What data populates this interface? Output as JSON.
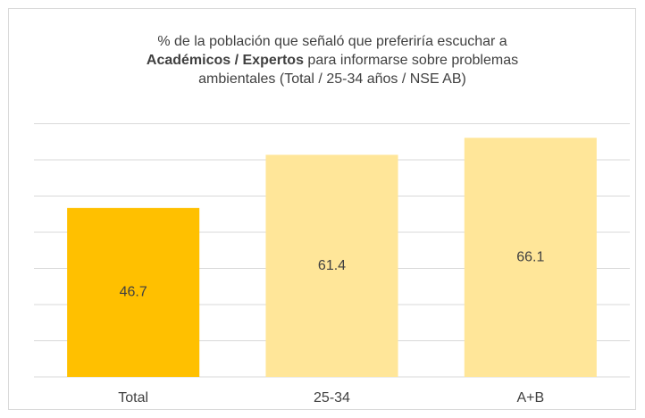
{
  "chart_data": {
    "type": "bar",
    "title": [
      [
        {
          "text": "% de la población que señaló que preferiría escuchar a",
          "bold": false
        }
      ],
      [
        {
          "text": "Académicos / Expertos",
          "bold": true
        },
        {
          "text": " para informarse sobre  problemas",
          "bold": false
        }
      ],
      [
        {
          "text": "ambientales (Total / 25-34 años / NSE AB)",
          "bold": false
        }
      ]
    ],
    "categories": [
      "Total",
      "25-34",
      "A+B"
    ],
    "values": [
      46.7,
      61.4,
      66.1
    ],
    "colors": [
      "#FFC000",
      "#FFE699",
      "#FFE699"
    ],
    "ylim": [
      0,
      70
    ],
    "yticks": [
      0,
      10,
      20,
      30,
      40,
      50,
      60,
      70
    ],
    "grid": true
  }
}
